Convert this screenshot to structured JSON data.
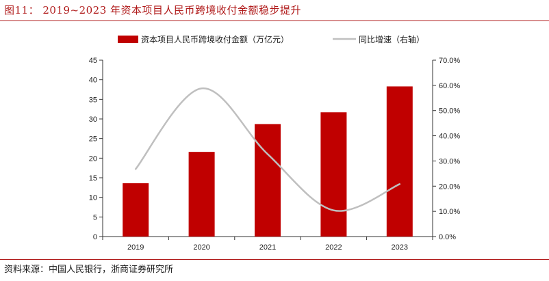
{
  "header": {
    "title": "图11：   2019~2023 年资本项目人民币跨境收付金额稳步提升"
  },
  "footer": {
    "source": "资料来源：中国人民银行，浙商证券研究所"
  },
  "colors": {
    "bar": "#c00000",
    "line": "#bfbfbf",
    "accent": "#b01a1a",
    "axis": "#333333"
  },
  "chart_data": {
    "type": "bar",
    "categories": [
      "2019",
      "2020",
      "2021",
      "2022",
      "2023"
    ],
    "series": [
      {
        "name": "资本项目人民币跨境收付金额（万亿元）",
        "type": "bar",
        "axis": "left",
        "values": [
          13.6,
          21.6,
          28.7,
          31.7,
          38.3
        ]
      },
      {
        "name": "同比增速（右轴）",
        "type": "line",
        "axis": "right",
        "smooth": true,
        "values": [
          0.268,
          0.588,
          0.327,
          0.104,
          0.208
        ]
      }
    ],
    "y_left": {
      "min": 0,
      "max": 45,
      "step": 5,
      "ticks": [
        "0",
        "5",
        "10",
        "15",
        "20",
        "25",
        "30",
        "35",
        "40",
        "45"
      ]
    },
    "y_right": {
      "min": 0,
      "max": 0.7,
      "step": 0.1,
      "ticks": [
        "0.0%",
        "10.0%",
        "20.0%",
        "30.0%",
        "40.0%",
        "50.0%",
        "60.0%",
        "70.0%"
      ]
    },
    "legend": {
      "position": "top",
      "items": [
        "资本项目人民币跨境收付金额（万亿元）",
        "同比增速（右轴）"
      ]
    },
    "grid": false
  }
}
